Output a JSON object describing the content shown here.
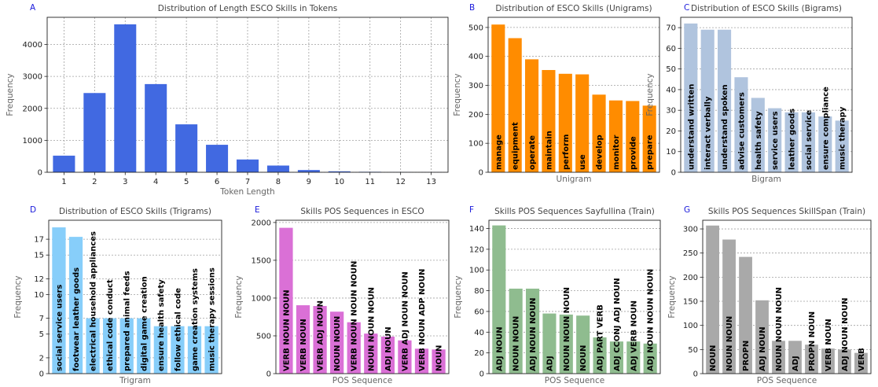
{
  "chart_data": [
    {
      "letter": "A",
      "type": "bar",
      "title": "Distribution of Length ESCO Skills in Tokens",
      "xlabel": "Token Length",
      "ylabel": "Frequency",
      "categories": [
        "1",
        "2",
        "3",
        "4",
        "5",
        "6",
        "7",
        "8",
        "9",
        "10",
        "11",
        "12",
        "13"
      ],
      "values": [
        520,
        2480,
        4630,
        2760,
        1500,
        860,
        400,
        210,
        70,
        30,
        15,
        8,
        5
      ],
      "ylim": [
        0,
        4850
      ],
      "yticks": [
        0,
        1000,
        2000,
        3000,
        4000
      ],
      "color": "#4169e1",
      "grid": "both",
      "labels_in_bars": false
    },
    {
      "letter": "B",
      "type": "bar",
      "title": "Distribution of ESCO Skills (Unigrams)",
      "xlabel": "Unigram",
      "ylabel": "Frequency",
      "categories": [
        "manage",
        "equipment",
        "operate",
        "maintain",
        "perform",
        "use",
        "develop",
        "monitor",
        "provide",
        "prepare"
      ],
      "values": [
        510,
        463,
        390,
        353,
        340,
        338,
        268,
        248,
        246,
        230
      ],
      "ylim": [
        0,
        535
      ],
      "yticks": [
        0,
        100,
        200,
        300,
        400,
        500
      ],
      "color": "#ff8c00",
      "grid": "y",
      "labels_in_bars": true
    },
    {
      "letter": "C",
      "type": "bar",
      "title": "Distribution of ESCO Skills (Bigrams)",
      "xlabel": "Bigram",
      "ylabel": "Frequency",
      "categories": [
        "understand written",
        "interact verbally",
        "understand spoken",
        "advise customers",
        "health safety",
        "service users",
        "leather goods",
        "social service",
        "ensure compliance",
        "music therapy"
      ],
      "values": [
        72,
        69,
        69,
        46,
        36,
        31,
        29,
        29,
        27,
        25
      ],
      "ylim": [
        0,
        75
      ],
      "yticks": [
        0,
        10,
        20,
        30,
        40,
        50,
        60,
        70
      ],
      "color": "#b0c4de",
      "grid": "y",
      "labels_in_bars": true
    },
    {
      "letter": "D",
      "type": "bar",
      "title": "Distribution of ESCO Skills (Trigrams)",
      "xlabel": "Trigram",
      "ylabel": "Frequency",
      "categories": [
        "social service users",
        "footwear leather goods",
        "electrical household appliances",
        "ethical code conduct",
        "prepared animal feeds",
        "digital game creation",
        "ensure health safety",
        "follow ethical code",
        "game creation systems",
        "music therapy sessions"
      ],
      "values": [
        18.5,
        17.3,
        7,
        7,
        7,
        7,
        6,
        6,
        6,
        6
      ],
      "ylim": [
        0,
        19.4
      ],
      "yticks": [
        0,
        2,
        5,
        7,
        10,
        12,
        15,
        17
      ],
      "color": "#87cefa",
      "grid": "y",
      "labels_in_bars": true
    },
    {
      "letter": "E",
      "type": "bar",
      "title": "Skills POS Sequences in ESCO",
      "xlabel": "POS Sequence",
      "ylabel": "Frequency",
      "categories": [
        "VERB NOUN NOUN",
        "VERB NOUN",
        "VERB ADJ NOUN",
        "NOUN NOUN",
        "VERB NOUN NOUN NOUN",
        "NOUN NOUN NOUN",
        "ADJ NOUN",
        "VERB ADJ NOUN NOUN",
        "VERB NOUN ADP NOUN",
        "NOUN"
      ],
      "values": [
        1930,
        905,
        895,
        820,
        680,
        530,
        490,
        440,
        330,
        320
      ],
      "ylim": [
        0,
        2030
      ],
      "yticks": [
        0,
        500,
        1000,
        1500,
        2000
      ],
      "color": "#da70d6",
      "grid": "y",
      "labels_in_bars": true
    },
    {
      "letter": "F",
      "type": "bar",
      "title": "Skills POS Sequences Sayfullina (Train)",
      "xlabel": "POS Sequence",
      "ylabel": "Frequency",
      "categories": [
        "ADJ NOUN",
        "NOUN NOUN",
        "ADJ NOUN NOUN",
        "ADJ",
        "NOUN NOUN NOUN",
        "NOUN",
        "ADJ PART VERB",
        "ADJ CCONJ ADJ NOUN",
        "ADJ VERB NOUN",
        "ADJ NOUN NOUN NOUN"
      ],
      "values": [
        143,
        82,
        82,
        58,
        57,
        56,
        35,
        31,
        31,
        29
      ],
      "ylim": [
        0,
        148
      ],
      "yticks": [
        0,
        20,
        40,
        60,
        80,
        100,
        120,
        140
      ],
      "color": "#8fbc8f",
      "grid": "y",
      "labels_in_bars": true
    },
    {
      "letter": "G",
      "type": "bar",
      "title": "Skills POS Sequences SkillSpan (Train)",
      "xlabel": "POS Sequence",
      "ylabel": "Frequency",
      "categories": [
        "NOUN",
        "NOUN NOUN",
        "PROPN",
        "ADJ NOUN",
        "NOUN NOUN NOUN",
        "ADJ",
        "PROPN NOUN",
        "VERB NOUN",
        "ADJ NOUN NOUN",
        "VERB"
      ],
      "values": [
        307,
        278,
        242,
        152,
        68,
        68,
        60,
        52,
        50,
        43
      ],
      "ylim": [
        0,
        318
      ],
      "yticks": [
        0,
        50,
        100,
        150,
        200,
        250,
        300
      ],
      "color": "#a9a9a9",
      "grid": "y",
      "labels_in_bars": true
    }
  ]
}
